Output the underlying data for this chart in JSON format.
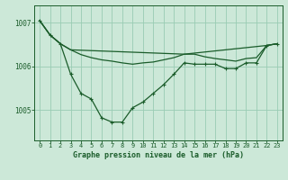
{
  "bg_color": "#cce8d8",
  "grid_color": "#99ccb4",
  "line_color": "#1a5c2a",
  "title": "Graphe pression niveau de la mer (hPa)",
  "xlim": [
    -0.5,
    23.5
  ],
  "ylim": [
    1004.3,
    1007.4
  ],
  "yticks": [
    1005,
    1006,
    1007
  ],
  "xticks": [
    0,
    1,
    2,
    3,
    4,
    5,
    6,
    7,
    8,
    9,
    10,
    11,
    12,
    13,
    14,
    15,
    16,
    17,
    18,
    19,
    20,
    21,
    22,
    23
  ],
  "line1_x": [
    0,
    1,
    2,
    3,
    4,
    5,
    6,
    7,
    8,
    9,
    10,
    11,
    12,
    13,
    14,
    15,
    16,
    17,
    18,
    19,
    20,
    21,
    22,
    23
  ],
  "line1_y": [
    1007.05,
    1006.72,
    1006.52,
    1006.38,
    1006.27,
    1006.2,
    1006.15,
    1006.12,
    1006.08,
    1006.05,
    1006.08,
    1006.1,
    1006.15,
    1006.2,
    1006.28,
    1006.28,
    1006.22,
    1006.18,
    1006.15,
    1006.12,
    1006.18,
    1006.2,
    1006.48,
    1006.52
  ],
  "line2_x": [
    0,
    1,
    2,
    3,
    4,
    5,
    6,
    7,
    8,
    9,
    10,
    11,
    12,
    13,
    14,
    15,
    16,
    17,
    18,
    19,
    20,
    21,
    22,
    23
  ],
  "line2_y": [
    1007.05,
    1006.72,
    1006.52,
    1005.82,
    1005.38,
    1005.25,
    1004.82,
    1004.72,
    1004.72,
    1005.05,
    1005.18,
    1005.38,
    1005.58,
    1005.82,
    1006.08,
    1006.05,
    1006.05,
    1006.05,
    1005.95,
    1005.95,
    1006.08,
    1006.08,
    1006.48,
    1006.52
  ],
  "line3_x": [
    0,
    1,
    2,
    3,
    14,
    22,
    23
  ],
  "line3_y": [
    1007.05,
    1006.72,
    1006.52,
    1006.38,
    1006.28,
    1006.48,
    1006.52
  ]
}
